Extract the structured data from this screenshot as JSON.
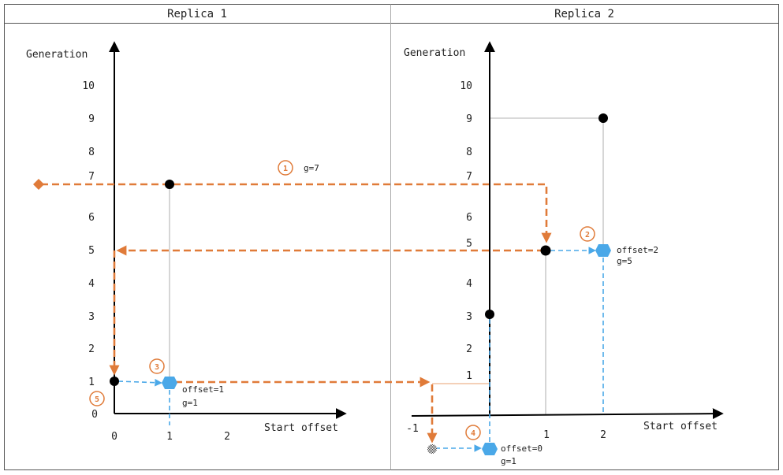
{
  "headers": {
    "replica1": "Replica 1",
    "replica2": "Replica 2"
  },
  "axis_labels": {
    "r1_y": "Generation",
    "r1_x": "Start offset",
    "r2_y": "Generation",
    "r2_x": "Start offset"
  },
  "r1_ticks_y": [
    "10",
    "9",
    "8",
    "7",
    "6",
    "5",
    "4",
    "3",
    "2",
    "1",
    "0"
  ],
  "r1_ticks_x": [
    "0",
    "1",
    "2"
  ],
  "r2_ticks_y": [
    "10",
    "9",
    "8",
    "7",
    "6",
    "5",
    "4",
    "3",
    "2",
    "1"
  ],
  "r2_ticks_x": [
    "-1",
    "1",
    "2"
  ],
  "steps": [
    {
      "num": "1",
      "note": "g=7"
    },
    {
      "num": "2",
      "note1": "offset=2",
      "note2": "g=5"
    },
    {
      "num": "3",
      "note1": "offset=1",
      "note2": "g=1"
    },
    {
      "num": "4",
      "note1": "offset=0",
      "note2": "g=1"
    },
    {
      "num": "5"
    }
  ],
  "colors": {
    "accent": "#e07b39",
    "blue": "#4aa8e8",
    "point": "#000000",
    "border": "#333333"
  }
}
